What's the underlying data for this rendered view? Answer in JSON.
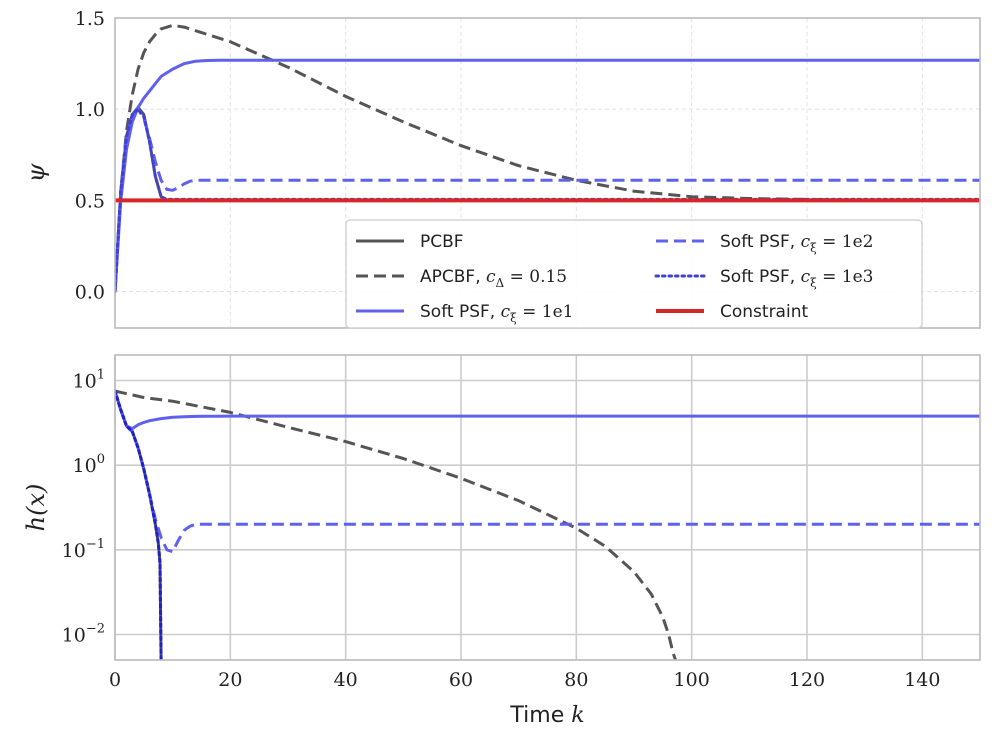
{
  "chart_data": [
    {
      "type": "line",
      "ylabel": "ψ",
      "xlim": [
        0,
        150
      ],
      "ylim": [
        -0.2,
        1.5
      ],
      "yscale": "linear",
      "grid": "dashed-light",
      "yticks": [
        {
          "value": 0.0,
          "label": "0.0"
        },
        {
          "value": 0.5,
          "label": "0.5"
        },
        {
          "value": 1.0,
          "label": "1.0"
        },
        {
          "value": 1.5,
          "label": "1.5"
        }
      ],
      "legend": {
        "placement": "lower-right",
        "entries": [
          {
            "series": 0,
            "text": "PCBF"
          },
          {
            "series": 1,
            "text": "APCBF, ",
            "math": "c",
            "sub": "Δ",
            "tail": " = 0.15"
          },
          {
            "series": 2,
            "text": "Soft PSF, ",
            "math": "c",
            "sub": "ξ",
            "tail": " = 1e1"
          },
          {
            "series": 3,
            "text": "Soft PSF, ",
            "math": "c",
            "sub": "ξ",
            "tail": " = 1e2"
          },
          {
            "series": 4,
            "text": "Soft PSF, ",
            "math": "c",
            "sub": "ξ",
            "tail": " = 1e3"
          },
          {
            "series": 5,
            "text": "Constraint"
          }
        ]
      },
      "series": [
        {
          "name": "PCBF",
          "color": "#555555",
          "dash": "solid",
          "x": [
            0,
            1,
            2,
            3,
            4,
            5,
            6,
            7,
            8,
            9,
            150
          ],
          "y": [
            0,
            0.55,
            0.85,
            0.97,
            1.01,
            0.97,
            0.82,
            0.63,
            0.52,
            0.5,
            0.5
          ]
        },
        {
          "name": "APCBF, c_Δ = 0.15",
          "color": "#555555",
          "dash": "dashed",
          "x": [
            0,
            1,
            2,
            3,
            4,
            5,
            6,
            7,
            8,
            10,
            12,
            15,
            20,
            30,
            40,
            50,
            60,
            70,
            80,
            90,
            100,
            110,
            120,
            130,
            140,
            150
          ],
          "y": [
            0,
            0.55,
            0.88,
            1.08,
            1.22,
            1.31,
            1.37,
            1.41,
            1.44,
            1.46,
            1.45,
            1.42,
            1.37,
            1.23,
            1.07,
            0.93,
            0.8,
            0.69,
            0.61,
            0.55,
            0.52,
            0.51,
            0.505,
            0.5,
            0.5,
            0.5
          ]
        },
        {
          "name": "Soft PSF, c_ξ = 1e1",
          "color": "#6060ee",
          "dash": "solid",
          "x": [
            0,
            1,
            2,
            3,
            4,
            5,
            6,
            7,
            8,
            10,
            12,
            14,
            16,
            18,
            20,
            150
          ],
          "y": [
            0,
            0.5,
            0.78,
            0.93,
            1.01,
            1.06,
            1.1,
            1.14,
            1.18,
            1.22,
            1.25,
            1.263,
            1.267,
            1.268,
            1.268,
            1.268
          ]
        },
        {
          "name": "Soft PSF, c_ξ = 1e2",
          "color": "#6060ee",
          "dash": "dashed",
          "x": [
            0,
            1,
            2,
            3,
            4,
            5,
            6,
            7,
            8,
            9,
            10,
            11,
            12,
            13,
            14,
            16,
            150
          ],
          "y": [
            0,
            0.55,
            0.85,
            0.97,
            1.0,
            0.95,
            0.84,
            0.71,
            0.61,
            0.56,
            0.555,
            0.57,
            0.59,
            0.605,
            0.61,
            0.61,
            0.61
          ]
        },
        {
          "name": "Soft PSF, c_ξ = 1e3",
          "color": "#4040dd",
          "dash": "dotted",
          "x": [
            0,
            1,
            2,
            3,
            4,
            5,
            6,
            7,
            8,
            9,
            150
          ],
          "y": [
            0,
            0.55,
            0.85,
            0.97,
            1.0,
            0.96,
            0.82,
            0.63,
            0.52,
            0.505,
            0.505
          ]
        },
        {
          "name": "Constraint",
          "color": "#d62728",
          "dash": "solid",
          "width": 4,
          "x": [
            0,
            150
          ],
          "y": [
            0.5,
            0.5
          ]
        }
      ]
    },
    {
      "type": "line",
      "ylabel": "h(x)",
      "xlabel": "Time k",
      "xlim": [
        0,
        150
      ],
      "ylim": [
        0.005,
        20
      ],
      "yscale": "log",
      "grid": "solid",
      "xticks": [
        {
          "value": 0,
          "label": "0"
        },
        {
          "value": 20,
          "label": "20"
        },
        {
          "value": 40,
          "label": "40"
        },
        {
          "value": 60,
          "label": "60"
        },
        {
          "value": 80,
          "label": "80"
        },
        {
          "value": 100,
          "label": "100"
        },
        {
          "value": 120,
          "label": "120"
        },
        {
          "value": 140,
          "label": "140"
        }
      ],
      "yticks": [
        {
          "value": 0.01,
          "base": "10",
          "exp": "−2"
        },
        {
          "value": 0.1,
          "base": "10",
          "exp": "−1"
        },
        {
          "value": 1,
          "base": "10",
          "exp": "0"
        },
        {
          "value": 10,
          "base": "10",
          "exp": "1"
        }
      ],
      "series": [
        {
          "name": "PCBF",
          "color": "#555555",
          "dash": "solid",
          "x": [
            0,
            1,
            2,
            3,
            4,
            5,
            6,
            7,
            7.5,
            7.8,
            8.0
          ],
          "y": [
            7.5,
            4.5,
            2.9,
            2.5,
            1.6,
            0.9,
            0.45,
            0.2,
            0.12,
            0.07,
            0.005
          ]
        },
        {
          "name": "APCBF, c_Δ = 0.15",
          "color": "#555555",
          "dash": "dashed",
          "x": [
            0,
            5,
            10,
            20,
            30,
            40,
            50,
            60,
            70,
            80,
            85,
            90,
            93,
            95,
            96,
            96.8,
            97.2
          ],
          "y": [
            7.5,
            6.3,
            5.7,
            4.2,
            2.8,
            1.9,
            1.2,
            0.7,
            0.38,
            0.18,
            0.11,
            0.055,
            0.03,
            0.016,
            0.01,
            0.006,
            0.005
          ]
        },
        {
          "name": "Soft PSF, c_ξ = 1e1",
          "color": "#6060ee",
          "dash": "solid",
          "x": [
            0,
            1,
            2,
            3,
            4,
            5,
            6,
            8,
            10,
            12,
            14,
            16,
            18,
            20,
            150
          ],
          "y": [
            7.5,
            4.5,
            2.9,
            2.7,
            3.0,
            3.2,
            3.35,
            3.55,
            3.68,
            3.74,
            3.77,
            3.78,
            3.79,
            3.8,
            3.8
          ]
        },
        {
          "name": "Soft PSF, c_ξ = 1e2",
          "color": "#6060ee",
          "dash": "dashed",
          "x": [
            0,
            1,
            2,
            3,
            4,
            5,
            6,
            7,
            8,
            9,
            10,
            11,
            12,
            13,
            14,
            16,
            150
          ],
          "y": [
            7.5,
            4.5,
            2.9,
            2.5,
            1.6,
            0.9,
            0.45,
            0.23,
            0.14,
            0.1,
            0.095,
            0.13,
            0.17,
            0.19,
            0.2,
            0.2,
            0.2
          ]
        },
        {
          "name": "Soft PSF, c_ξ = 1e3",
          "color": "#2020cc",
          "dash": "dotted",
          "x": [
            0,
            1,
            2,
            3,
            4,
            5,
            6,
            7,
            7.5,
            7.8,
            8.0
          ],
          "y": [
            7.5,
            4.5,
            2.9,
            2.5,
            1.6,
            0.9,
            0.45,
            0.2,
            0.12,
            0.07,
            0.005
          ]
        }
      ]
    }
  ]
}
